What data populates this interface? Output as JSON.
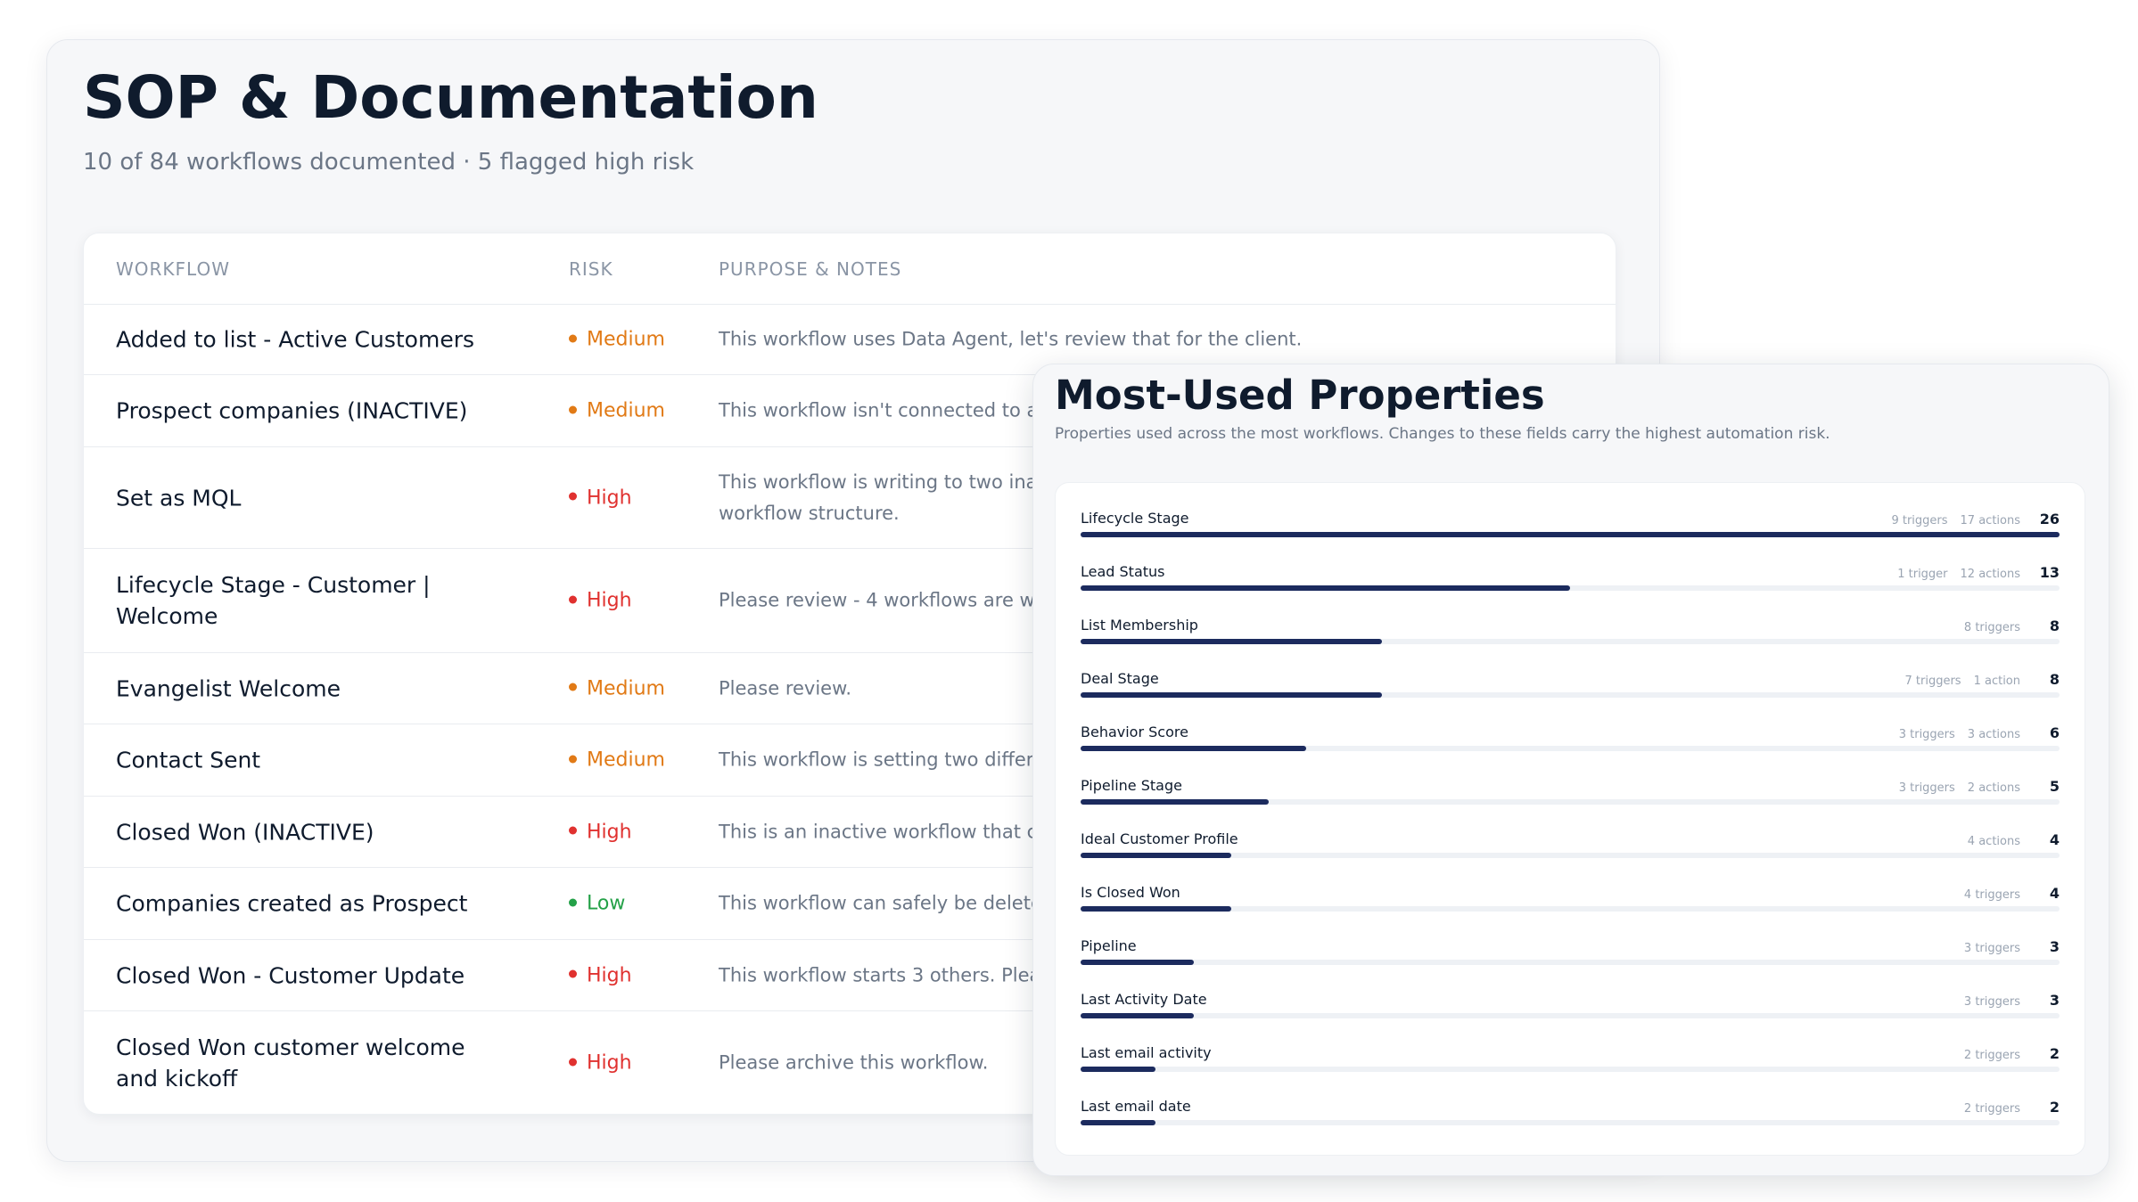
{
  "sop": {
    "title": "SOP & Documentation",
    "subtitle": "10 of 84 workflows documented · 5 flagged high risk",
    "columns": {
      "workflow": "WORKFLOW",
      "risk": "RISK",
      "notes": "PURPOSE & NOTES"
    },
    "rows": [
      {
        "name": "Added to list - Active Customers",
        "risk": "Medium",
        "level": "medium",
        "notes": "This workflow uses Data Agent, let's review that for the client."
      },
      {
        "name": "Prospect companies (INACTIVE)",
        "risk": "Medium",
        "level": "medium",
        "notes": "This workflow isn't connected to an"
      },
      {
        "name": "Set as MQL",
        "risk": "High",
        "level": "high",
        "notes": "This workflow is writing to two inact workflow structure."
      },
      {
        "name": "Lifecycle Stage - Customer | Welcome",
        "risk": "High",
        "level": "high",
        "notes": "Please review - 4 workflows are writ"
      },
      {
        "name": "Evangelist Welcome",
        "risk": "Medium",
        "level": "medium",
        "notes": "Please review."
      },
      {
        "name": "Contact Sent",
        "risk": "Medium",
        "level": "medium",
        "notes": "This workflow is setting two differen"
      },
      {
        "name": "Closed Won (INACTIVE)",
        "risk": "High",
        "level": "high",
        "notes": "This is an inactive workflow that car"
      },
      {
        "name": "Companies created as Prospect",
        "risk": "Low",
        "level": "low",
        "notes": "This workflow can safely be deleted"
      },
      {
        "name": "Closed Won - Customer Update",
        "risk": "High",
        "level": "high",
        "notes": "This workflow starts 3 others. Pleas"
      },
      {
        "name": "Closed Won customer welcome and kickoff",
        "risk": "High",
        "level": "high",
        "notes": "Please archive this workflow."
      }
    ]
  },
  "properties": {
    "title": "Most-Used Properties",
    "subtitle": "Properties used across the most workflows. Changes to these fields carry the highest automation risk.",
    "max_total": 26,
    "items": [
      {
        "name": "Lifecycle Stage",
        "stats": [
          "9 triggers",
          "17 actions"
        ],
        "total": 26
      },
      {
        "name": "Lead Status",
        "stats": [
          "1 trigger",
          "12 actions"
        ],
        "total": 13
      },
      {
        "name": "List Membership",
        "stats": [
          "8 triggers"
        ],
        "total": 8
      },
      {
        "name": "Deal Stage",
        "stats": [
          "7 triggers",
          "1 action"
        ],
        "total": 8
      },
      {
        "name": "Behavior Score",
        "stats": [
          "3 triggers",
          "3 actions"
        ],
        "total": 6
      },
      {
        "name": "Pipeline Stage",
        "stats": [
          "3 triggers",
          "2 actions"
        ],
        "total": 5
      },
      {
        "name": "Ideal Customer Profile",
        "stats": [
          "4 actions"
        ],
        "total": 4
      },
      {
        "name": "Is Closed Won",
        "stats": [
          "4 triggers"
        ],
        "total": 4
      },
      {
        "name": "Pipeline",
        "stats": [
          "3 triggers"
        ],
        "total": 3
      },
      {
        "name": "Last Activity Date",
        "stats": [
          "3 triggers"
        ],
        "total": 3
      },
      {
        "name": "Last email activity",
        "stats": [
          "2 triggers"
        ],
        "total": 2
      },
      {
        "name": "Last email date",
        "stats": [
          "2 triggers"
        ],
        "total": 2
      }
    ]
  },
  "colors": {
    "medium": "#e17a16",
    "high": "#e0312f",
    "low": "#24a148",
    "bar": "#1c2b5e",
    "track": "#eef1f5"
  }
}
